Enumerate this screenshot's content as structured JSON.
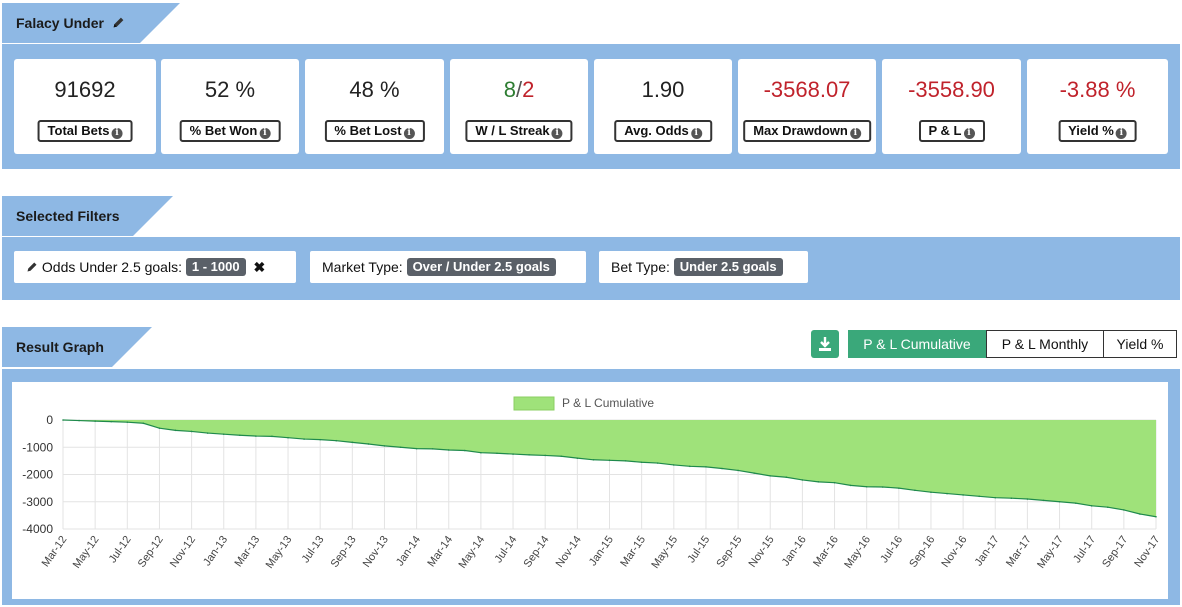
{
  "header": {
    "title": "Falacy Under"
  },
  "stats": [
    {
      "value": "91692",
      "label": "Total Bets",
      "tone": "neutral"
    },
    {
      "value": "52 %",
      "label": "% Bet Won",
      "tone": "neutral"
    },
    {
      "value": "48 %",
      "label": "% Bet Lost",
      "tone": "neutral"
    },
    {
      "value_won": "8",
      "value_sep": "/",
      "value_lost": "2",
      "label": "W / L Streak",
      "tone": "split"
    },
    {
      "value": "1.90",
      "label": "Avg. Odds",
      "tone": "neutral"
    },
    {
      "value": "-3568.07",
      "label": "Max Drawdown",
      "tone": "negative"
    },
    {
      "value": "-3558.90",
      "label": "P & L",
      "tone": "negative"
    },
    {
      "value": "-3.88 %",
      "label": "Yield %",
      "tone": "negative"
    }
  ],
  "filters": {
    "title": "Selected Filters",
    "items": [
      {
        "label": "Odds Under 2.5 goals:",
        "value": "1 - 1000"
      },
      {
        "label": "Market Type:",
        "value": "Over / Under 2.5 goals"
      },
      {
        "label": "Bet Type:",
        "value": "Under 2.5 goals"
      }
    ]
  },
  "result": {
    "title": "Result Graph",
    "tabs": [
      {
        "label": "P & L Cumulative",
        "active": true
      },
      {
        "label": "P & L Monthly",
        "active": false
      },
      {
        "label": "Yield %",
        "active": false
      }
    ]
  },
  "colors": {
    "band": "#8eb8e4",
    "positive": "#2e7d32",
    "negative": "#c0222b",
    "accent": "#3aa87a",
    "area_fill": "#9fe27a",
    "area_line": "#1f8a4c"
  },
  "icons": [
    "pencil-icon",
    "info-icon",
    "close-icon",
    "download-icon"
  ],
  "chart_data": {
    "type": "area",
    "legend": "P & L Cumulative",
    "legend_position": "top-center",
    "grid": true,
    "ylim": [
      -4000,
      0
    ],
    "yticks": [
      "0",
      "-1000",
      "-2000",
      "-3000",
      "-4000"
    ],
    "x": [
      "Mar-12",
      "Apr-12",
      "May-12",
      "Jun-12",
      "Jul-12",
      "Aug-12",
      "Sep-12",
      "Oct-12",
      "Nov-12",
      "Dec-12",
      "Jan-13",
      "Feb-13",
      "Mar-13",
      "Apr-13",
      "May-13",
      "Jun-13",
      "Jul-13",
      "Aug-13",
      "Sep-13",
      "Oct-13",
      "Nov-13",
      "Dec-13",
      "Jan-14",
      "Feb-14",
      "Mar-14",
      "Apr-14",
      "May-14",
      "Jun-14",
      "Jul-14",
      "Aug-14",
      "Sep-14",
      "Oct-14",
      "Nov-14",
      "Dec-14",
      "Jan-15",
      "Feb-15",
      "Mar-15",
      "Apr-15",
      "May-15",
      "Jun-15",
      "Jul-15",
      "Aug-15",
      "Sep-15",
      "Oct-15",
      "Nov-15",
      "Dec-15",
      "Jan-16",
      "Feb-16",
      "Mar-16",
      "Apr-16",
      "May-16",
      "Jun-16",
      "Jul-16",
      "Aug-16",
      "Sep-16",
      "Oct-16",
      "Nov-16",
      "Dec-16",
      "Jan-17",
      "Feb-17",
      "Mar-17",
      "Apr-17",
      "May-17",
      "Jun-17",
      "Jul-17",
      "Aug-17",
      "Sep-17",
      "Oct-17",
      "Nov-17"
    ],
    "xtick_labels": [
      "Mar-12",
      "May-12",
      "Jul-12",
      "Sep-12",
      "Nov-12",
      "Jan-13",
      "Mar-13",
      "May-13",
      "Jul-13",
      "Sep-13",
      "Nov-13",
      "Jan-14",
      "Mar-14",
      "May-14",
      "Jul-14",
      "Sep-14",
      "Nov-14",
      "Jan-15",
      "Mar-15",
      "May-15",
      "Jul-15",
      "Sep-15",
      "Nov-15",
      "Jan-16",
      "Mar-16",
      "May-16",
      "Jul-16",
      "Sep-16",
      "Nov-16",
      "Jan-17",
      "Mar-17",
      "May-17",
      "Jul-17",
      "Sep-17",
      "Nov-17"
    ],
    "y": [
      0,
      -20,
      -40,
      -60,
      -80,
      -120,
      -300,
      -380,
      -420,
      -480,
      -520,
      -560,
      -590,
      -600,
      -650,
      -700,
      -720,
      -760,
      -820,
      -880,
      -950,
      -1000,
      -1050,
      -1060,
      -1100,
      -1120,
      -1200,
      -1220,
      -1250,
      -1280,
      -1300,
      -1330,
      -1400,
      -1460,
      -1480,
      -1500,
      -1550,
      -1580,
      -1650,
      -1700,
      -1720,
      -1780,
      -1850,
      -1950,
      -2050,
      -2100,
      -2200,
      -2270,
      -2300,
      -2400,
      -2450,
      -2460,
      -2500,
      -2580,
      -2650,
      -2700,
      -2750,
      -2800,
      -2850,
      -2870,
      -2900,
      -2950,
      -3000,
      -3050,
      -3150,
      -3200,
      -3300,
      -3450,
      -3550
    ]
  }
}
